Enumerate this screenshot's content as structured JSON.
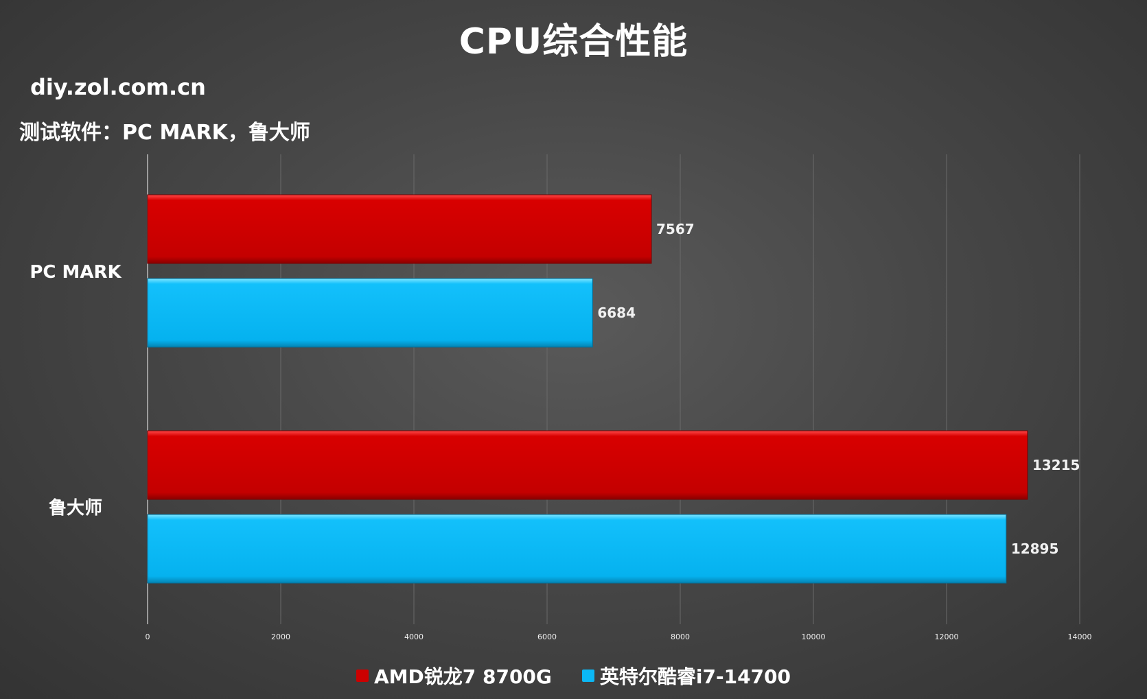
{
  "header": {
    "title": "CPU综合性能",
    "site": "diy.zol.com.cn",
    "subtitle": "测试软件：PC MARK，鲁大师"
  },
  "chart_data": {
    "type": "bar",
    "orientation": "horizontal",
    "categories": [
      "PC MARK",
      "鲁大师"
    ],
    "series": [
      {
        "name": "AMD锐龙7 8700G",
        "color": "#cc0000",
        "values": [
          7567,
          13215
        ]
      },
      {
        "name": "英特尔酷睿i7-14700",
        "color": "#0bb8f5",
        "values": [
          6684,
          12895
        ]
      }
    ],
    "xlim": [
      0,
      14000
    ],
    "xticks": [
      0,
      2000,
      4000,
      6000,
      8000,
      10000,
      12000,
      14000
    ],
    "grid": true,
    "legend_position": "bottom"
  }
}
